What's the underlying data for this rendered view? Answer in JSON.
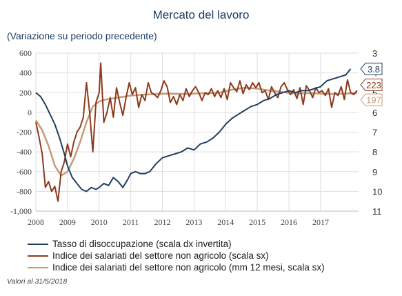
{
  "chart_data": {
    "type": "line",
    "title": "Mercato del lavoro",
    "subtitle": "(Variazione su periodo precedente)",
    "x_ticks": [
      "2008",
      "2009",
      "2010",
      "2011",
      "2012",
      "2013",
      "2014",
      "2015",
      "2016",
      "2017"
    ],
    "y_left": {
      "ticks": [
        600,
        400,
        200,
        0,
        -200,
        -400,
        -600,
        -800,
        -1000
      ],
      "tick_labels": [
        "600",
        "400",
        "200",
        "0",
        "-200",
        "-400",
        "-600",
        "-800",
        "-1,000"
      ],
      "range": [
        -1000,
        600
      ]
    },
    "y_right": {
      "ticks": [
        3,
        4,
        5,
        6,
        7,
        8,
        9,
        10,
        11
      ],
      "range": [
        3,
        11
      ],
      "inverted": true
    },
    "grid": true,
    "series": [
      {
        "name": "Tasso di disoccupazione (scala dx invertita)",
        "axis": "right",
        "color": "#1f3e5f",
        "end_label": "3.8",
        "points": [
          [
            2008.0,
            5.0
          ],
          [
            2008.15,
            5.2
          ],
          [
            2008.3,
            5.6
          ],
          [
            2008.45,
            6.1
          ],
          [
            2008.6,
            6.6
          ],
          [
            2008.75,
            7.3
          ],
          [
            2008.9,
            8.1
          ],
          [
            2009.0,
            8.7
          ],
          [
            2009.15,
            9.3
          ],
          [
            2009.3,
            9.6
          ],
          [
            2009.45,
            9.9
          ],
          [
            2009.6,
            10.0
          ],
          [
            2009.75,
            9.8
          ],
          [
            2009.9,
            9.9
          ],
          [
            2010.0,
            9.8
          ],
          [
            2010.15,
            9.6
          ],
          [
            2010.3,
            9.7
          ],
          [
            2010.45,
            9.3
          ],
          [
            2010.6,
            9.5
          ],
          [
            2010.75,
            9.8
          ],
          [
            2010.9,
            9.4
          ],
          [
            2011.0,
            9.1
          ],
          [
            2011.15,
            9.0
          ],
          [
            2011.3,
            9.1
          ],
          [
            2011.45,
            9.1
          ],
          [
            2011.6,
            9.0
          ],
          [
            2011.8,
            8.6
          ],
          [
            2012.0,
            8.3
          ],
          [
            2012.2,
            8.2
          ],
          [
            2012.4,
            8.1
          ],
          [
            2012.6,
            8.0
          ],
          [
            2012.8,
            7.8
          ],
          [
            2013.0,
            7.9
          ],
          [
            2013.2,
            7.6
          ],
          [
            2013.4,
            7.5
          ],
          [
            2013.6,
            7.3
          ],
          [
            2013.8,
            7.0
          ],
          [
            2014.0,
            6.6
          ],
          [
            2014.2,
            6.3
          ],
          [
            2014.4,
            6.1
          ],
          [
            2014.6,
            5.9
          ],
          [
            2014.8,
            5.7
          ],
          [
            2015.0,
            5.6
          ],
          [
            2015.2,
            5.4
          ],
          [
            2015.4,
            5.3
          ],
          [
            2015.6,
            5.1
          ],
          [
            2015.8,
            5.0
          ],
          [
            2016.0,
            4.9
          ],
          [
            2016.2,
            5.0
          ],
          [
            2016.4,
            4.9
          ],
          [
            2016.6,
            4.9
          ],
          [
            2016.8,
            4.8
          ],
          [
            2017.0,
            4.7
          ],
          [
            2017.2,
            4.4
          ],
          [
            2017.4,
            4.3
          ],
          [
            2017.6,
            4.2
          ],
          [
            2017.8,
            4.1
          ],
          [
            2017.95,
            3.8
          ]
        ]
      },
      {
        "name": "Indice dei salariati del settore non agricolo (scala sx)",
        "axis": "left",
        "color": "#8b3a1c",
        "end_label": "223",
        "points": [
          [
            2008.0,
            -100
          ],
          [
            2008.1,
            -250
          ],
          [
            2008.2,
            -420
          ],
          [
            2008.3,
            -760
          ],
          [
            2008.4,
            -700
          ],
          [
            2008.5,
            -800
          ],
          [
            2008.6,
            -750
          ],
          [
            2008.7,
            -900
          ],
          [
            2008.8,
            -600
          ],
          [
            2008.9,
            -500
          ],
          [
            2009.0,
            -320
          ],
          [
            2009.1,
            -450
          ],
          [
            2009.2,
            -300
          ],
          [
            2009.3,
            -200
          ],
          [
            2009.4,
            -150
          ],
          [
            2009.5,
            -50
          ],
          [
            2009.6,
            300
          ],
          [
            2009.7,
            0
          ],
          [
            2009.8,
            -400
          ],
          [
            2009.9,
            100
          ],
          [
            2010.0,
            200
          ],
          [
            2010.05,
            500
          ],
          [
            2010.15,
            -100
          ],
          [
            2010.25,
            0
          ],
          [
            2010.35,
            150
          ],
          [
            2010.45,
            -50
          ],
          [
            2010.55,
            250
          ],
          [
            2010.65,
            100
          ],
          [
            2010.75,
            -30
          ],
          [
            2010.85,
            150
          ],
          [
            2010.95,
            300
          ],
          [
            2011.05,
            180
          ],
          [
            2011.15,
            250
          ],
          [
            2011.25,
            50
          ],
          [
            2011.35,
            180
          ],
          [
            2011.45,
            120
          ],
          [
            2011.55,
            300
          ],
          [
            2011.65,
            200
          ],
          [
            2011.75,
            180
          ],
          [
            2011.85,
            150
          ],
          [
            2011.95,
            220
          ],
          [
            2012.05,
            320
          ],
          [
            2012.15,
            260
          ],
          [
            2012.25,
            100
          ],
          [
            2012.35,
            160
          ],
          [
            2012.45,
            80
          ],
          [
            2012.55,
            180
          ],
          [
            2012.65,
            120
          ],
          [
            2012.75,
            240
          ],
          [
            2012.85,
            160
          ],
          [
            2012.95,
            220
          ],
          [
            2013.05,
            260
          ],
          [
            2013.15,
            200
          ],
          [
            2013.25,
            120
          ],
          [
            2013.35,
            200
          ],
          [
            2013.45,
            180
          ],
          [
            2013.55,
            240
          ],
          [
            2013.65,
            160
          ],
          [
            2013.75,
            220
          ],
          [
            2013.85,
            150
          ],
          [
            2013.95,
            240
          ],
          [
            2014.05,
            130
          ],
          [
            2014.15,
            300
          ],
          [
            2014.25,
            250
          ],
          [
            2014.35,
            210
          ],
          [
            2014.45,
            320
          ],
          [
            2014.55,
            190
          ],
          [
            2014.65,
            280
          ],
          [
            2014.75,
            230
          ],
          [
            2014.85,
            300
          ],
          [
            2014.95,
            250
          ],
          [
            2015.05,
            300
          ],
          [
            2015.15,
            200
          ],
          [
            2015.25,
            220
          ],
          [
            2015.35,
            130
          ],
          [
            2015.45,
            260
          ],
          [
            2015.55,
            200
          ],
          [
            2015.65,
            150
          ],
          [
            2015.75,
            260
          ],
          [
            2015.85,
            300
          ],
          [
            2015.95,
            230
          ],
          [
            2016.05,
            180
          ],
          [
            2016.15,
            230
          ],
          [
            2016.25,
            140
          ],
          [
            2016.35,
            250
          ],
          [
            2016.45,
            80
          ],
          [
            2016.55,
            270
          ],
          [
            2016.65,
            220
          ],
          [
            2016.75,
            150
          ],
          [
            2016.85,
            250
          ],
          [
            2016.95,
            200
          ],
          [
            2017.05,
            220
          ],
          [
            2017.15,
            170
          ],
          [
            2017.25,
            240
          ],
          [
            2017.35,
            50
          ],
          [
            2017.45,
            200
          ],
          [
            2017.55,
            170
          ],
          [
            2017.65,
            260
          ],
          [
            2017.75,
            130
          ],
          [
            2017.85,
            330
          ],
          [
            2017.95,
            200
          ],
          [
            2018.05,
            180
          ],
          [
            2018.15,
            223
          ]
        ]
      },
      {
        "name": "Indice dei salariati del settore non agricolo (mm 12 mesi, scala sx)",
        "axis": "left",
        "color": "#c49a7a",
        "end_label": "197",
        "points": [
          [
            2008.0,
            -80
          ],
          [
            2008.2,
            -180
          ],
          [
            2008.4,
            -340
          ],
          [
            2008.6,
            -540
          ],
          [
            2008.8,
            -640
          ],
          [
            2009.0,
            -600
          ],
          [
            2009.2,
            -470
          ],
          [
            2009.4,
            -300
          ],
          [
            2009.6,
            -100
          ],
          [
            2009.8,
            60
          ],
          [
            2010.0,
            110
          ],
          [
            2010.2,
            130
          ],
          [
            2010.4,
            140
          ],
          [
            2010.6,
            150
          ],
          [
            2010.8,
            160
          ],
          [
            2011.0,
            170
          ],
          [
            2011.4,
            180
          ],
          [
            2011.8,
            185
          ],
          [
            2012.2,
            190
          ],
          [
            2012.6,
            185
          ],
          [
            2013.0,
            190
          ],
          [
            2013.4,
            195
          ],
          [
            2013.8,
            200
          ],
          [
            2014.2,
            230
          ],
          [
            2014.6,
            250
          ],
          [
            2015.0,
            240
          ],
          [
            2015.4,
            220
          ],
          [
            2015.8,
            205
          ],
          [
            2016.2,
            190
          ],
          [
            2016.6,
            195
          ],
          [
            2017.0,
            190
          ],
          [
            2017.4,
            185
          ],
          [
            2017.8,
            190
          ],
          [
            2018.15,
            197
          ]
        ]
      }
    ]
  },
  "note": "Valori al 31/5/2018"
}
